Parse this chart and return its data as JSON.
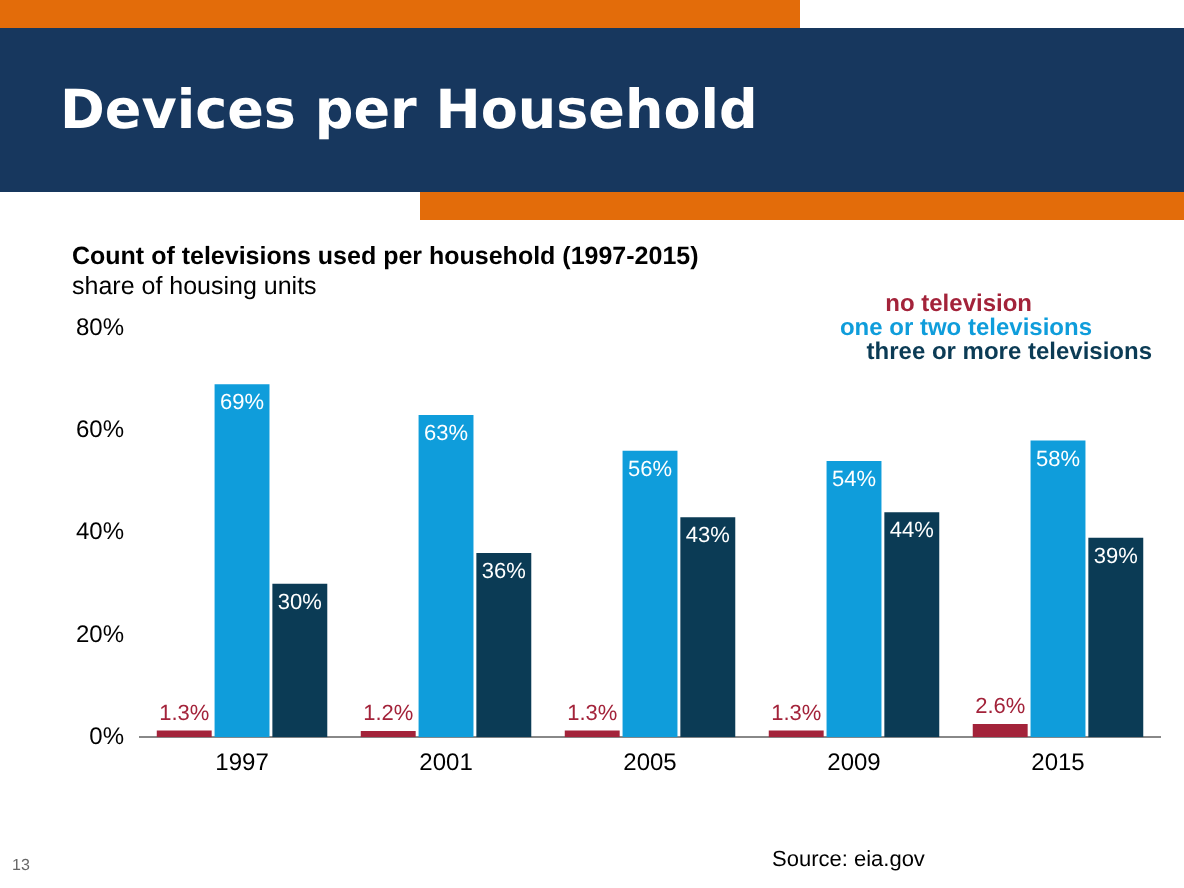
{
  "chart_data": {
    "type": "bar",
    "title": "Devices per Household",
    "subtitle": "Count of televisions used per household (1997-2015)",
    "ylabel": "share of housing units",
    "categories": [
      "1997",
      "2001",
      "2005",
      "2009",
      "2015"
    ],
    "series": [
      {
        "name": "no television",
        "color": "#a3233a",
        "values": [
          1.3,
          1.2,
          1.3,
          1.3,
          2.6
        ],
        "value_labels": [
          "1.3%",
          "1.2%",
          "1.3%",
          "1.3%",
          "2.6%"
        ]
      },
      {
        "name": "one or two televisions",
        "color": "#0f9ddb",
        "values": [
          69,
          63,
          56,
          54,
          58
        ],
        "value_labels": [
          "69%",
          "63%",
          "56%",
          "54%",
          "58%"
        ]
      },
      {
        "name": "three or more televisions",
        "color": "#0b3b55",
        "values": [
          30,
          36,
          43,
          44,
          39
        ],
        "value_labels": [
          "30%",
          "36%",
          "43%",
          "44%",
          "39%"
        ]
      }
    ],
    "ylim": [
      0,
      80
    ],
    "yticks": [
      {
        "value": 0,
        "label": "0%"
      },
      {
        "value": 20,
        "label": "20%"
      },
      {
        "value": 40,
        "label": "40%"
      },
      {
        "value": 60,
        "label": "60%"
      },
      {
        "value": 80,
        "label": "80%"
      }
    ],
    "grid": false,
    "legend": "top right",
    "annotations": [
      "Source: eia.gov",
      "13"
    ]
  }
}
